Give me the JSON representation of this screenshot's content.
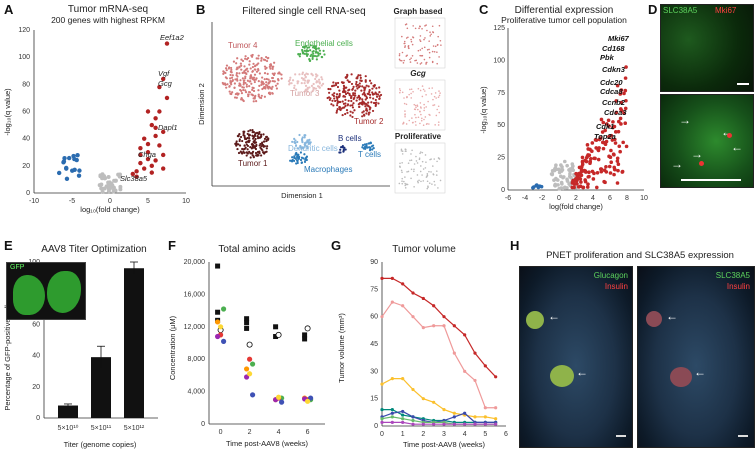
{
  "labels": {
    "A": "A",
    "B": "B",
    "C": "C",
    "D": "D",
    "E": "E",
    "F": "F",
    "G": "G",
    "H": "H"
  },
  "panelA": {
    "title": "Tumor mRNA-seq",
    "subtitle": "200 genes with highest RPKM",
    "ylabel": "-log₁₀(q value)",
    "xlabel": "log₁₀(fold change)",
    "genes": [
      "Eef1a2",
      "Vgf",
      "Gcg",
      "Dapl1",
      "Chga",
      "Slc38a5"
    ],
    "xticks": [
      "-10",
      "-5",
      "0",
      "5",
      "10"
    ],
    "yticks": [
      "0",
      "20",
      "40",
      "60",
      "80",
      "100",
      "120"
    ]
  },
  "panelB": {
    "title": "Filtered single cell RNA-seq",
    "dim1": "Dimension 1",
    "dim2": "Dimension 2",
    "clusters": [
      "Tumor 4",
      "Endothelial cells",
      "Tumor 3",
      "Tumor 2",
      "Tumor 1",
      "Dendritic cells",
      "B cells",
      "T cells",
      "Macrophages"
    ],
    "side": [
      "Graph based",
      "Gcg",
      "Proliferative"
    ]
  },
  "panelC": {
    "title": "Differential expression",
    "subtitle": "Proliferative tumor cell population",
    "ylabel": "-log₁₀(q value)",
    "xlabel": "log(fold change)",
    "genes": [
      "Mki67",
      "Cd168",
      "Pbk",
      "Cdkn3",
      "Cdc20",
      "Cdca8",
      "Ccnb2",
      "Cdca3",
      "Cdk1",
      "Top2a"
    ],
    "xticks": [
      "-6",
      "-4",
      "-2",
      "0",
      "2",
      "4",
      "6",
      "8",
      "10"
    ],
    "yticks": [
      "0",
      "25",
      "50",
      "75",
      "100",
      "125"
    ]
  },
  "panelD": {
    "stain1": "SLC38A5",
    "stain2": "Mki67"
  },
  "panelE": {
    "title": "AAV8 Titer Optimization",
    "inset": "GFP",
    "ylabel": "Percentage of GFP-positive cells",
    "xlabel": "Titer (genome copies)",
    "yticks": [
      "0",
      "20",
      "40",
      "60",
      "80",
      "100"
    ]
  },
  "panelF": {
    "title": "Total amino acids",
    "ylabel": "Concentration (μM)",
    "xlabel": "Time post-AAV8 (weeks)",
    "yticks": [
      "0",
      "4,000",
      "8,000",
      "12,000",
      "16,000",
      "20,000"
    ],
    "xticks": [
      "0",
      "2",
      "4",
      "6"
    ]
  },
  "panelG": {
    "title": "Tumor volume",
    "ylabel": "Tumor volume (mm³)",
    "xlabel": "Time post-AAV8 (weeks)",
    "yticks": [
      "0",
      "15",
      "30",
      "45",
      "60",
      "75",
      "90"
    ],
    "xticks": [
      "0",
      "1",
      "2",
      "3",
      "4",
      "5",
      "6"
    ]
  },
  "panelH": {
    "title": "PNET proliferation and SLC38A5 expression",
    "left1": "Glucagon",
    "left2": "Insulin",
    "right1": "SLC38A5",
    "right2": "Insulin"
  },
  "chart_data": [
    {
      "type": "bar",
      "panel": "E",
      "categories": [
        "5×10¹⁰",
        "5×10¹¹",
        "5×10¹²"
      ],
      "values": [
        8,
        39,
        96
      ],
      "errors": [
        1,
        7,
        4
      ],
      "ylim": [
        0,
        100
      ],
      "title": "AAV8 Titer Optimization",
      "xlabel": "Titer (genome copies)",
      "ylabel": "Percentage of GFP-positive cells"
    },
    {
      "type": "scatter",
      "panel": "F",
      "title": "Total amino acids",
      "xlabel": "Time post-AAV8 (weeks)",
      "ylabel": "Concentration (μM)",
      "ylim": [
        0,
        20000
      ],
      "series": [
        {
          "name": "",
          "color": "#111111",
          "x": [
            0,
            0,
            0,
            2,
            2,
            2,
            4,
            4,
            6,
            6
          ],
          "y": [
            19500,
            13800,
            12800,
            13000,
            12500,
            11800,
            12000,
            10800,
            11000,
            10500
          ]
        },
        {
          "name": "",
          "color": "#ffffff",
          "x": [
            0,
            2,
            4,
            6
          ],
          "y": [
            11600,
            9800,
            11000,
            11800
          ]
        },
        {
          "name": "",
          "color": "#4caf50",
          "x": [
            0,
            2,
            4,
            6
          ],
          "y": [
            14200,
            7400,
            3200,
            3000
          ]
        },
        {
          "name": "",
          "color": "#ff9800",
          "x": [
            0,
            2,
            4,
            6
          ],
          "y": [
            12600,
            6800,
            3000,
            3200
          ]
        },
        {
          "name": "",
          "color": "#e53935",
          "x": [
            0,
            2,
            4,
            6
          ],
          "y": [
            11000,
            8000,
            3200,
            3000
          ]
        },
        {
          "name": "",
          "color": "#3f51b5",
          "x": [
            0,
            2,
            4,
            6
          ],
          "y": [
            10200,
            3600,
            2700,
            3200
          ]
        },
        {
          "name": "",
          "color": "#9c27b0",
          "x": [
            0,
            2,
            4,
            6
          ],
          "y": [
            10800,
            5800,
            3000,
            3100
          ]
        },
        {
          "name": "",
          "color": "#fdd835",
          "x": [
            0,
            2,
            4,
            6
          ],
          "y": [
            12000,
            6200,
            3300,
            2800
          ]
        }
      ]
    },
    {
      "type": "line",
      "panel": "G",
      "title": "Tumor volume",
      "xlabel": "Time post-AAV8 (weeks)",
      "ylabel": "Tumor volume (mm³)",
      "xlim": [
        0,
        6
      ],
      "ylim": [
        0,
        90
      ],
      "x": [
        0,
        0.5,
        1,
        1.5,
        2,
        2.5,
        3,
        3.5,
        4,
        4.5,
        5,
        5.5
      ],
      "series": [
        {
          "color": "#c62828",
          "values": [
            81,
            81,
            78,
            73,
            70,
            66,
            60,
            55,
            50,
            40,
            33,
            27
          ]
        },
        {
          "color": "#ef9a9a",
          "values": [
            60,
            68,
            66,
            60,
            54,
            55,
            55,
            40,
            30,
            25,
            10,
            10
          ]
        },
        {
          "color": "#fbc02d",
          "values": [
            23,
            26,
            26,
            20,
            15,
            13,
            9,
            7,
            6,
            5,
            5,
            4
          ]
        },
        {
          "color": "#00897b",
          "values": [
            9,
            9,
            6,
            5,
            4,
            3,
            3,
            2,
            2,
            2,
            2,
            2
          ]
        },
        {
          "color": "#3949ab",
          "values": [
            5,
            7,
            8,
            5,
            3,
            2,
            3,
            5,
            7,
            2,
            2,
            2
          ]
        },
        {
          "color": "#66bb6a",
          "values": [
            4,
            5,
            4,
            3,
            2,
            2,
            2,
            1,
            1,
            1,
            1,
            1
          ]
        },
        {
          "color": "#ab47bc",
          "values": [
            2,
            2,
            2,
            1,
            1,
            1,
            1,
            1,
            1,
            1,
            1,
            1
          ]
        }
      ]
    }
  ]
}
